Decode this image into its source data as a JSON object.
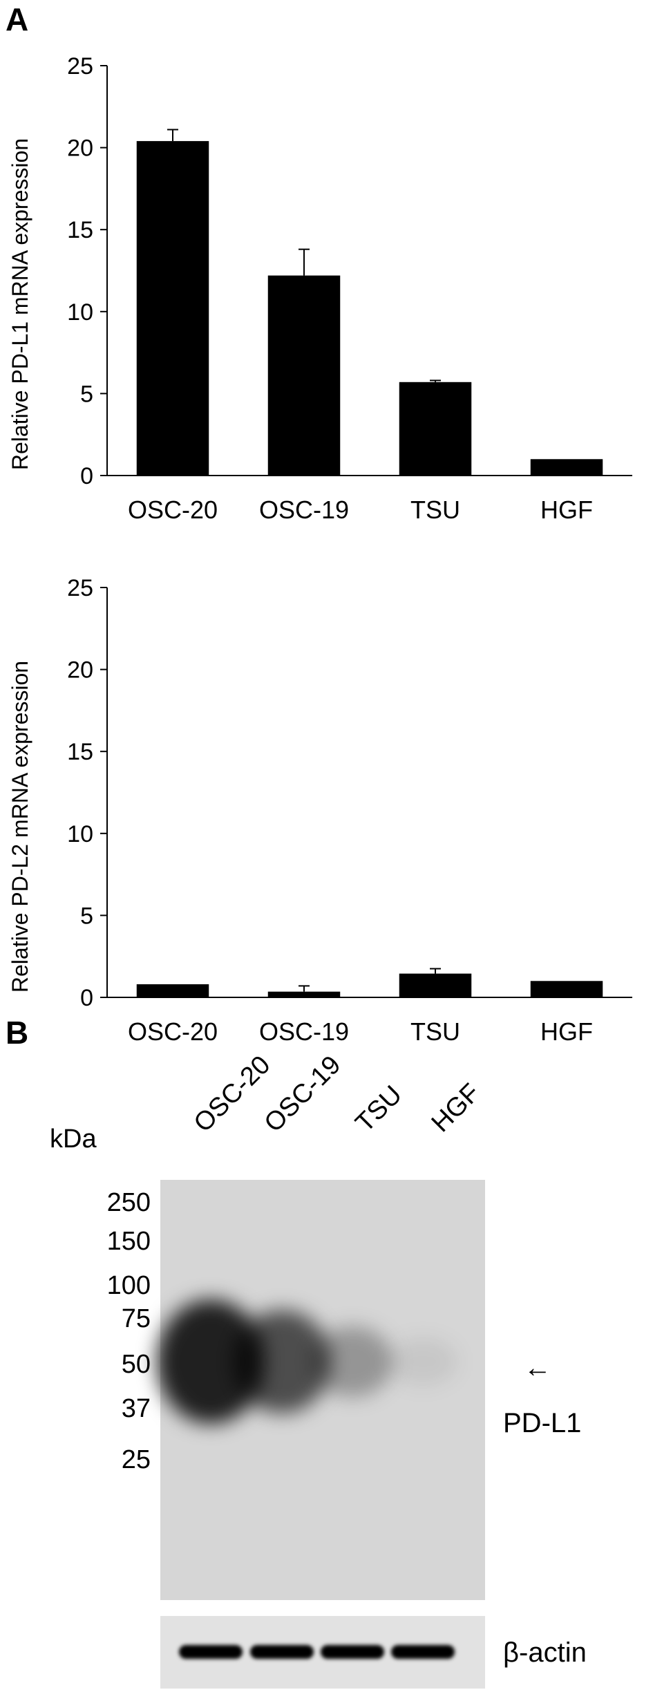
{
  "panels": {
    "a": "A",
    "b": "B"
  },
  "chart_data": [
    {
      "type": "bar",
      "title": "",
      "xlabel": "",
      "ylabel": "Relative PD-L1 mRNA expression",
      "categories": [
        "OSC-20",
        "OSC-19",
        "TSU",
        "HGF"
      ],
      "values": [
        20.4,
        12.2,
        5.7,
        1.0
      ],
      "errors": [
        0.7,
        1.6,
        0.1,
        0.0
      ],
      "ylim": [
        0,
        25
      ],
      "yticks": [
        0,
        5,
        10,
        15,
        20,
        25
      ],
      "grid": false,
      "bar_color": "#000000"
    },
    {
      "type": "bar",
      "title": "",
      "xlabel": "",
      "ylabel": "Relative PD-L2 mRNA expression",
      "categories": [
        "OSC-20",
        "OSC-19",
        "TSU",
        "HGF"
      ],
      "values": [
        0.8,
        0.35,
        1.45,
        1.0
      ],
      "errors": [
        0.0,
        0.35,
        0.3,
        0.0
      ],
      "ylim": [
        0,
        25
      ],
      "yticks": [
        0,
        5,
        10,
        15,
        20,
        25
      ],
      "grid": false,
      "bar_color": "#000000"
    }
  ],
  "blot": {
    "lanes": [
      "OSC-20",
      "OSC-19",
      "TSU",
      "HGF"
    ],
    "unit_label": "kDa",
    "markers": [
      "250",
      "150",
      "100",
      "75",
      "50",
      "37",
      "25"
    ],
    "target_label": "PD-L1",
    "loading_label": "β-actin",
    "arrow_symbol": "←",
    "band_intensity": [
      1.0,
      0.75,
      0.35,
      0.08
    ]
  }
}
